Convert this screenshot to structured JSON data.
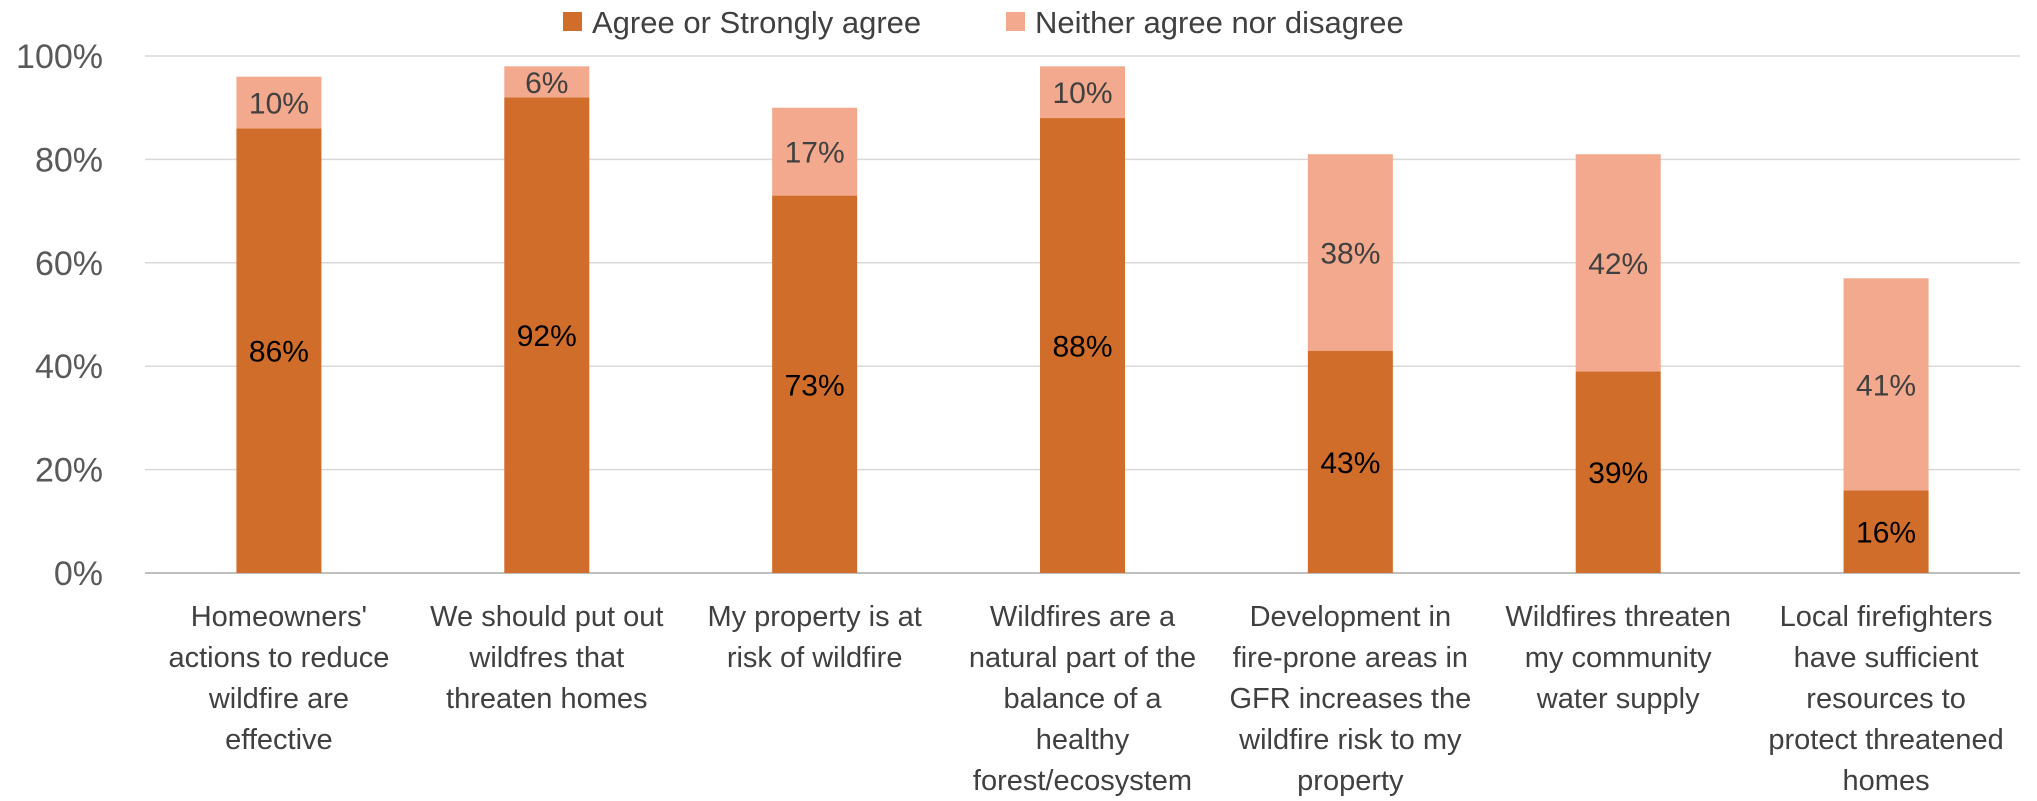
{
  "chart_data": {
    "type": "bar",
    "stacked": true,
    "categories": [
      "Homeowners' actions to reduce wildfire are effective",
      "We should put out wildfres that threaten homes",
      "My property is at risk of wildfire",
      "Wildfires are a natural part of the balance of a healthy forest/ecosystem",
      "Development in fire-prone areas in GFR increases the wildfire risk to my property",
      "Wildfires threaten my community water supply",
      "Local firefighters have sufficient resources to protect threatened homes"
    ],
    "category_lines": [
      [
        "Homeowners'",
        "actions to reduce",
        "wildfire are",
        "effective"
      ],
      [
        "We should put out",
        "wildfres that",
        "threaten homes"
      ],
      [
        "My property is at",
        "risk of wildfire"
      ],
      [
        "Wildfires are a",
        "natural part of the",
        "balance of a",
        "healthy",
        "forest/ecosystem"
      ],
      [
        "Development in",
        "fire-prone areas in",
        "GFR increases the",
        "wildfire risk to my",
        "property"
      ],
      [
        "Wildfires threaten",
        "my community",
        "water supply"
      ],
      [
        "Local firefighters",
        "have sufficient",
        "resources to",
        "protect threatened",
        "homes"
      ]
    ],
    "series": [
      {
        "name": "Agree or Strongly agree",
        "color": "#D06D2A",
        "label_color": "#000000",
        "values": [
          86,
          92,
          73,
          88,
          43,
          39,
          16
        ],
        "labels": [
          "86%",
          "92%",
          "73%",
          "88%",
          "43%",
          "39%",
          "16%"
        ]
      },
      {
        "name": "Neither agree nor disagree",
        "color": "#F2A98D",
        "label_color": "#404040",
        "values": [
          10,
          6,
          17,
          10,
          38,
          42,
          41
        ],
        "labels": [
          "10%",
          "6%",
          "17%",
          "10%",
          "38%",
          "42%",
          "41%"
        ]
      }
    ],
    "ylim": [
      0,
      100
    ],
    "yticks": [
      "0%",
      "20%",
      "40%",
      "60%",
      "80%",
      "100%"
    ],
    "grid": true,
    "legend_position": "top",
    "xlabel": "",
    "ylabel": "",
    "title": ""
  }
}
